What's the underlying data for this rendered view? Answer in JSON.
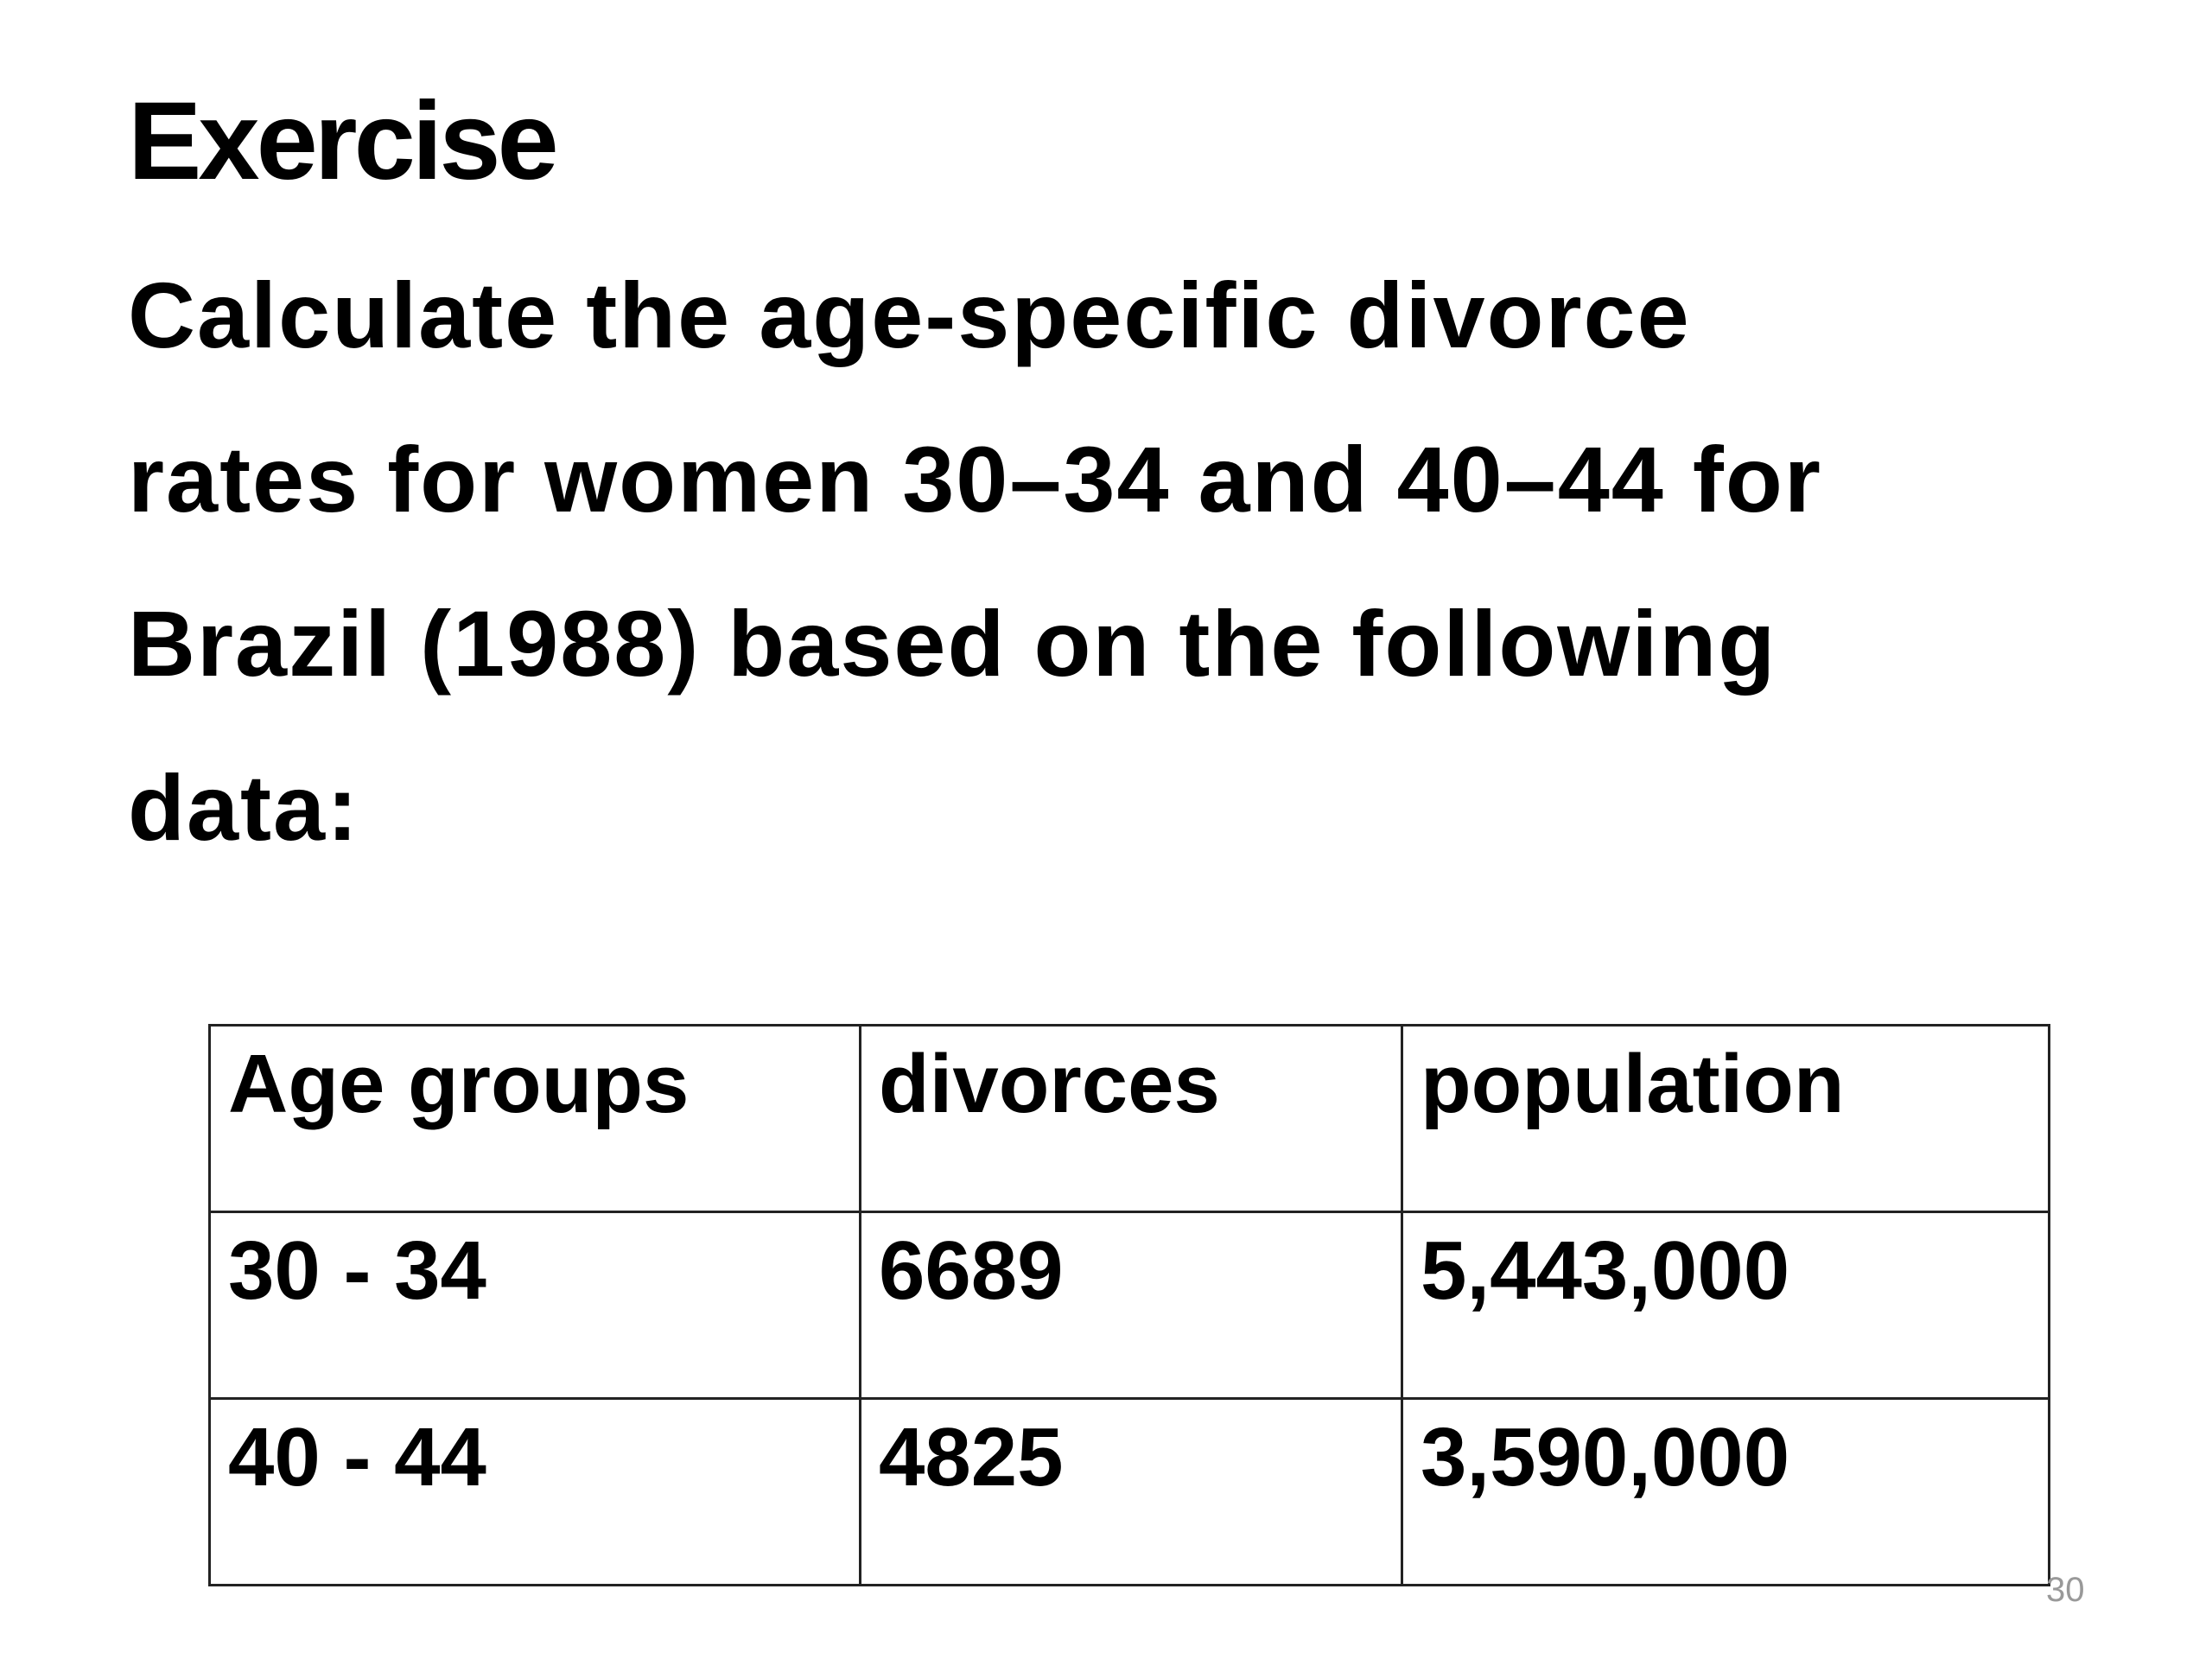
{
  "title": "Exercise",
  "body_lines": [
    "Calculate the age-specific divorce",
    "rates for women 30–34 and 40–44 for",
    "Brazil (1988) based on the following",
    "data:"
  ],
  "table": {
    "header": [
      "Age groups",
      "divorces",
      "population"
    ],
    "rows": [
      [
        "30 - 34",
        "6689",
        "5,443,000"
      ],
      [
        "40 - 44",
        "4825",
        "3,590,000"
      ]
    ]
  },
  "page_number": "30"
}
